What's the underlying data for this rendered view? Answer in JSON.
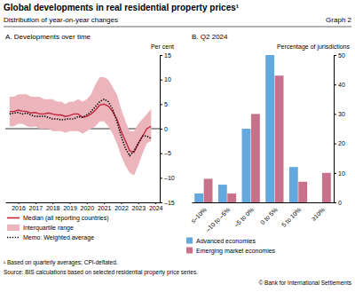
{
  "title": "Global developments in real residential property prices¹",
  "subtitle": "Distribution of year-on-year changes",
  "graph_label": "Graph 2",
  "footnote": "¹ Based on quarterly averages; CPI-deflated.",
  "source": "Source: BIS calculations based on selected residential property price series.",
  "copyright": "© Bank for International Settlements",
  "chart_data": [
    {
      "type": "line",
      "title": "A. Developments over time",
      "y_label": "Per cent",
      "x": [
        2016,
        2016.25,
        2016.5,
        2016.75,
        2017,
        2017.25,
        2017.5,
        2017.75,
        2018,
        2018.25,
        2018.5,
        2018.75,
        2019,
        2019.25,
        2019.5,
        2019.75,
        2020,
        2020.25,
        2020.5,
        2020.75,
        2021,
        2021.25,
        2021.5,
        2021.75,
        2022,
        2022.25,
        2022.5,
        2022.75,
        2023,
        2023.25,
        2023.5,
        2023.75,
        2024,
        2024.25
      ],
      "xlim": [
        2015.75,
        2024.75
      ],
      "xticks": [
        {
          "value": 2016.5,
          "label": "2016"
        },
        {
          "value": 2017.5,
          "label": "2017"
        },
        {
          "value": 2018.5,
          "label": "2018"
        },
        {
          "value": 2019.5,
          "label": "2019"
        },
        {
          "value": 2020.5,
          "label": "2020"
        },
        {
          "value": 2021.5,
          "label": "2021"
        },
        {
          "value": 2022.5,
          "label": "2022"
        },
        {
          "value": 2023.5,
          "label": "2023"
        },
        {
          "value": 2024.5,
          "label": "2024"
        }
      ],
      "ylim": [
        -15,
        15
      ],
      "yticks": [
        {
          "value": -15,
          "label": "–15"
        },
        {
          "value": -10,
          "label": "–10"
        },
        {
          "value": -5,
          "label": "–5"
        },
        0,
        5,
        10,
        15
      ],
      "legend": "bottom",
      "series": [
        {
          "name": "Median (all reporting countries)",
          "color": "#c3243b",
          "line_style": "solid",
          "values": [
            3.5,
            3.5,
            3.8,
            3.6,
            3.5,
            3.2,
            3.3,
            3.0,
            3.0,
            3.2,
            3.0,
            2.8,
            2.8,
            2.5,
            2.7,
            3.0,
            3.0,
            2.3,
            2.5,
            3.0,
            3.8,
            4.8,
            5.0,
            4.6,
            3.5,
            2.0,
            -0.5,
            -2.5,
            -4.5,
            -4.8,
            -3.0,
            -1.5,
            0.0,
            0.5
          ]
        },
        {
          "name": "Interquartile range",
          "type": "range",
          "color": "#ebb5bb",
          "low": [
            0.5,
            0.5,
            1.0,
            1.0,
            0.5,
            0.3,
            0.5,
            0.0,
            0.0,
            0.0,
            -0.5,
            -0.5,
            -0.5,
            -0.8,
            -0.5,
            -0.5,
            -0.5,
            -1.0,
            -0.5,
            0.0,
            0.5,
            1.5,
            1.5,
            0.5,
            -1.0,
            -3.0,
            -5.5,
            -7.5,
            -9.0,
            -9.5,
            -7.5,
            -5.0,
            -3.0,
            -2.5
          ],
          "high": [
            6.5,
            6.5,
            7.0,
            7.0,
            7.0,
            6.5,
            6.5,
            6.5,
            6.0,
            6.0,
            6.0,
            5.5,
            5.5,
            5.0,
            5.5,
            5.5,
            6.0,
            5.5,
            6.0,
            7.0,
            9.0,
            10.5,
            10.5,
            10.0,
            8.5,
            7.0,
            4.0,
            1.5,
            -0.5,
            -0.5,
            1.0,
            2.0,
            3.0,
            4.0
          ]
        },
        {
          "name": "Memo: Weighted average",
          "color": "#000000",
          "line_style": "dotted",
          "values": [
            3.0,
            3.2,
            3.3,
            3.0,
            3.2,
            2.8,
            2.5,
            2.5,
            2.6,
            2.3,
            2.0,
            2.0,
            1.8,
            1.9,
            2.0,
            2.0,
            2.5,
            2.3,
            2.8,
            3.5,
            4.5,
            5.5,
            6.0,
            5.5,
            4.0,
            1.5,
            -1.5,
            -4.0,
            -5.5,
            -4.5,
            -3.0,
            -1.5,
            -1.5,
            -2.0
          ]
        }
      ]
    },
    {
      "type": "bar",
      "title": "B. Q2 2024",
      "y_label": "Percentage of jurisdictions",
      "categories": [
        "≤–10%",
        "–10 to –5%",
        "–5 to 0%",
        "0 to 5%",
        "5 to 10%",
        "≥10%"
      ],
      "ylim": [
        0,
        50
      ],
      "yticks": [
        0,
        10,
        20,
        30,
        40,
        50
      ],
      "legend": "bottom",
      "series": [
        {
          "name": "Advanced economies",
          "color": "#63a9e0",
          "values": [
            3,
            6,
            25,
            50,
            12,
            0
          ]
        },
        {
          "name": "Emerging market economies",
          "color": "#c7718a",
          "values": [
            8,
            3,
            30,
            43,
            7,
            10
          ]
        }
      ]
    }
  ]
}
